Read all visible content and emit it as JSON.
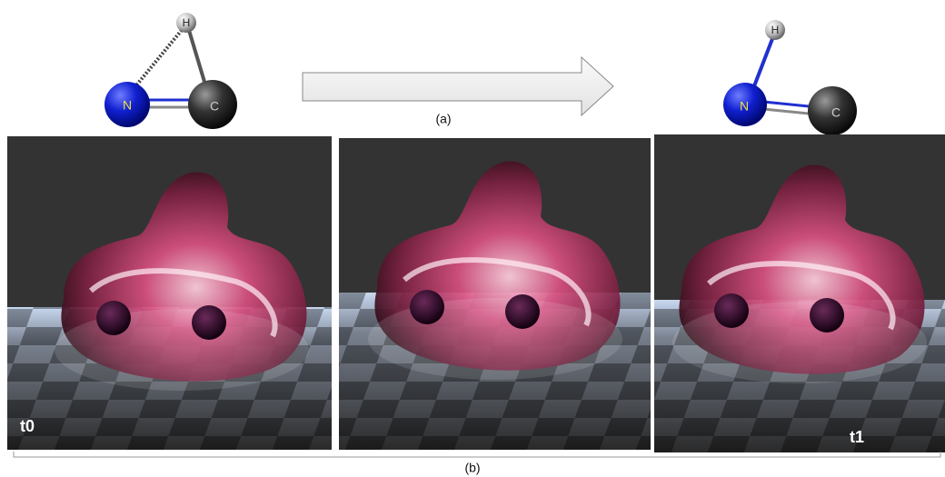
{
  "figure": {
    "molecule_start": {
      "atoms": [
        "H",
        "N",
        "C"
      ]
    },
    "molecule_end": {
      "atoms": [
        "H",
        "N",
        "C"
      ]
    },
    "caption_a": "(a)",
    "panels": [
      {
        "label": "t0"
      },
      {
        "label": null
      },
      {
        "label": "t1"
      }
    ],
    "caption_b": "(b)"
  }
}
